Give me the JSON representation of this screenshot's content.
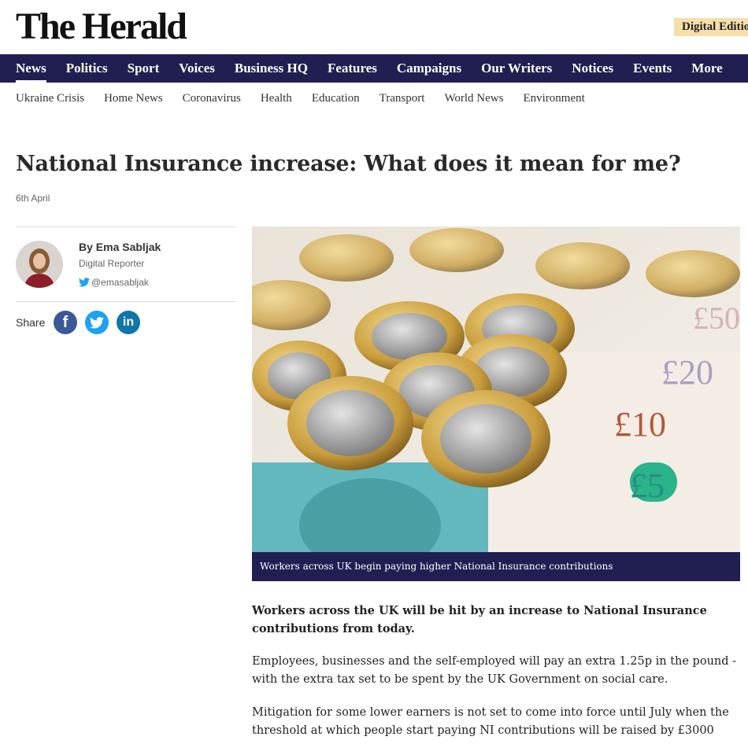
{
  "header": {
    "logo": "The Herald",
    "digital_edition": "Digital Edition"
  },
  "nav": [
    "News",
    "Politics",
    "Sport",
    "Voices",
    "Business HQ",
    "Features",
    "Campaigns",
    "Our Writers",
    "Notices",
    "Events",
    "More"
  ],
  "subnav": [
    "Ukraine Crisis",
    "Home News",
    "Coronavirus",
    "Health",
    "Education",
    "Transport",
    "World News",
    "Environment"
  ],
  "article": {
    "headline": "National Insurance increase: What does it mean for me?",
    "date": "6th April",
    "author": {
      "name": "By Ema Sabljak",
      "role": "Digital Reporter",
      "twitter": "@emasabljak"
    },
    "share_label": "Share",
    "image_caption": "Workers across UK begin paying higher National Insurance contributions",
    "paragraphs": [
      "Workers across the UK will be hit by an increase to National Insurance contributions from today.",
      "Employees, businesses and the self-employed will pay an extra 1.25p in the pound - with the extra tax set to be spent by the UK Government on social care.",
      "Mitigation for some lower earners is not set to come into force until July when the threshold at which people start paying NI contributions will be raised by £3000"
    ]
  }
}
